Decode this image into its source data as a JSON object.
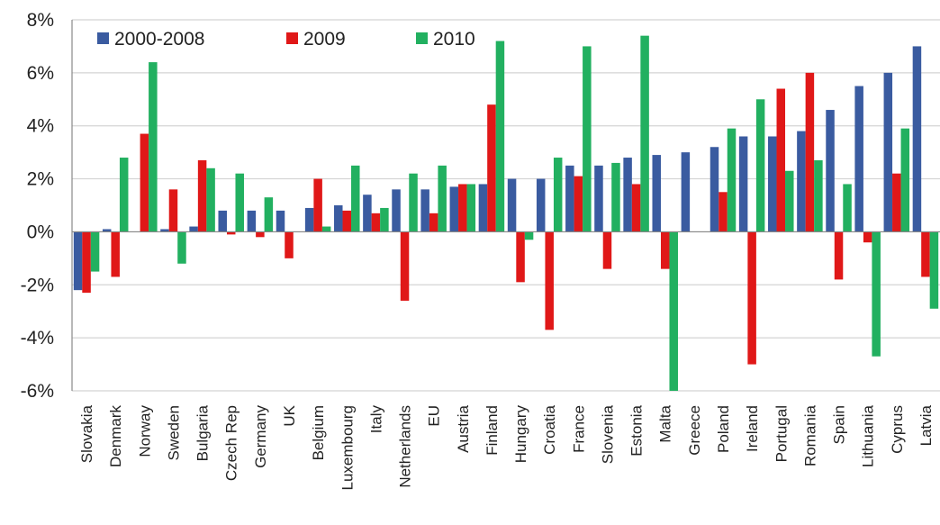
{
  "chart_data": {
    "type": "bar",
    "categories": [
      "Slovakia",
      "Denmark",
      "Norway",
      "Sweden",
      "Bulgaria",
      "Czech Rep",
      "Germany",
      "UK",
      "Belgium",
      "Luxembourg",
      "Italy",
      "Netherlands",
      "EU",
      "Austria",
      "Finland",
      "Hungary",
      "Croatia",
      "France",
      "Slovenia",
      "Estonia",
      "Malta",
      "Greece",
      "Poland",
      "Ireland",
      "Portugal",
      "Romania",
      "Spain",
      "Lithuania",
      "Cyprus",
      "Latvia"
    ],
    "series": [
      {
        "name": "2000-2008",
        "color": "#3a5ba0",
        "values": [
          -2.2,
          0.1,
          0.0,
          0.1,
          0.2,
          0.8,
          0.8,
          0.8,
          0.9,
          1.0,
          1.4,
          1.6,
          1.6,
          1.7,
          1.8,
          2.0,
          2.0,
          2.5,
          2.5,
          2.8,
          2.9,
          3.0,
          3.2,
          3.6,
          3.6,
          3.8,
          4.6,
          5.5,
          6.0,
          7.0
        ]
      },
      {
        "name": "2009",
        "color": "#e01818",
        "values": [
          -2.3,
          -1.7,
          3.7,
          1.6,
          2.7,
          -0.1,
          -0.2,
          -1.0,
          2.0,
          0.8,
          0.7,
          -2.6,
          0.7,
          1.8,
          4.8,
          -1.9,
          -3.7,
          2.1,
          -1.4,
          1.8,
          -1.4,
          0.0,
          1.5,
          -5.0,
          5.4,
          6.0,
          -1.8,
          -0.4,
          2.2,
          -1.7
        ]
      },
      {
        "name": "2010",
        "color": "#22b060",
        "values": [
          -1.5,
          2.8,
          6.4,
          -1.2,
          2.4,
          2.2,
          1.3,
          0.0,
          0.2,
          2.5,
          0.9,
          2.2,
          2.5,
          1.8,
          7.2,
          -0.3,
          2.8,
          7.0,
          2.6,
          7.4,
          -6.0,
          0.0,
          3.9,
          5.0,
          2.3,
          2.7,
          1.8,
          -4.7,
          3.9,
          -2.9
        ]
      }
    ],
    "y_ticks": [
      "8%",
      "6%",
      "4%",
      "2%",
      "0%",
      "-2%",
      "-4%",
      "-6%"
    ],
    "ylim": [
      -6,
      8
    ],
    "grid": true,
    "legend_position": "top-left"
  }
}
